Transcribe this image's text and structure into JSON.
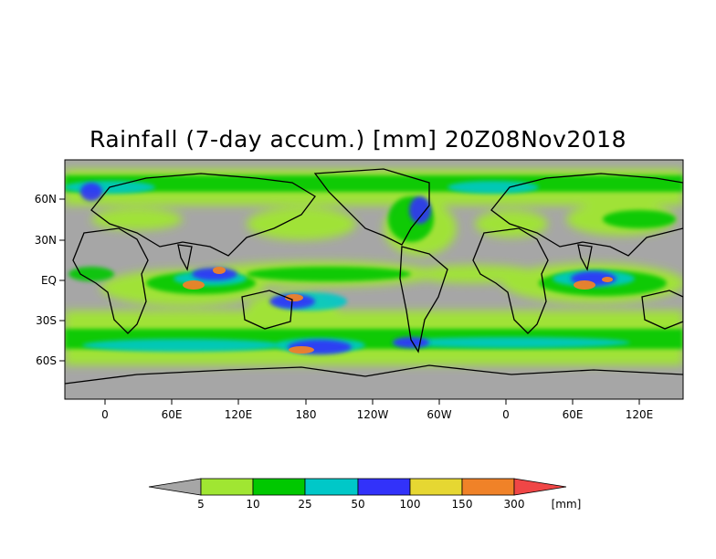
{
  "title": "Rainfall (7-day accum.) [mm] 20Z08Nov2018",
  "colors": {
    "background": "#a6a6a6",
    "land_outline": "#000000",
    "frame": "#000000"
  },
  "y_axis": {
    "tick_labels": [
      "60N",
      "30N",
      "EQ",
      "30S",
      "60S"
    ]
  },
  "x_axis": {
    "tick_labels": [
      "0",
      "60E",
      "120E",
      "180",
      "120W",
      "60W",
      "0",
      "60E",
      "120E"
    ]
  },
  "colorbar": {
    "unit_label": "[mm]",
    "boundaries": [
      "5",
      "10",
      "25",
      "50",
      "100",
      "150",
      "300"
    ],
    "colors": [
      "#a6a6a6",
      "#a0e632",
      "#00c800",
      "#00c8c8",
      "#3232fa",
      "#e6d732",
      "#f08228",
      "#f04646"
    ]
  }
}
